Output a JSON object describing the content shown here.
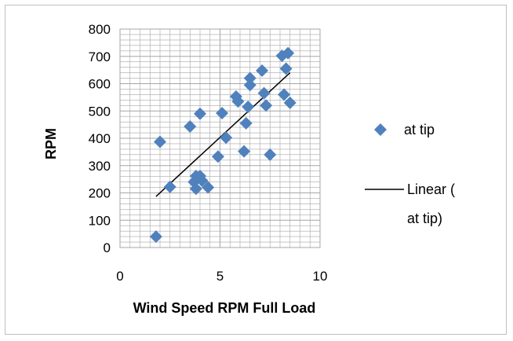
{
  "chart_data": {
    "type": "scatter",
    "xlabel": "Wind Speed RPM Full Load",
    "ylabel": "RPM",
    "xlim": [
      0,
      10
    ],
    "ylim": [
      0,
      800
    ],
    "x_ticks": [
      0,
      5,
      10
    ],
    "y_ticks": [
      0,
      100,
      200,
      300,
      400,
      500,
      600,
      700,
      800
    ],
    "x_tick_labels": [
      "0",
      "5",
      "10"
    ],
    "y_tick_labels": [
      "0",
      "100",
      "200",
      "300",
      "400",
      "500",
      "600",
      "700",
      "800"
    ],
    "grid": true,
    "legend_position": "right",
    "colors": {
      "marker": "#4f81bd",
      "trendline": "#000000",
      "grid": "#a6a6a6"
    },
    "series": [
      {
        "name": "at tip",
        "marker": "diamond",
        "points": [
          [
            1.8,
            40
          ],
          [
            2.0,
            387
          ],
          [
            2.5,
            222
          ],
          [
            3.5,
            443
          ],
          [
            3.7,
            240
          ],
          [
            3.8,
            262
          ],
          [
            3.8,
            215
          ],
          [
            4.0,
            490
          ],
          [
            4.0,
            262
          ],
          [
            4.1,
            245
          ],
          [
            4.4,
            220
          ],
          [
            4.9,
            333
          ],
          [
            5.1,
            492
          ],
          [
            5.3,
            402
          ],
          [
            5.8,
            553
          ],
          [
            5.9,
            535
          ],
          [
            6.2,
            352
          ],
          [
            6.3,
            455
          ],
          [
            6.4,
            515
          ],
          [
            6.5,
            620
          ],
          [
            6.5,
            595
          ],
          [
            7.1,
            648
          ],
          [
            7.2,
            565
          ],
          [
            7.3,
            520
          ],
          [
            7.5,
            340
          ],
          [
            8.1,
            702
          ],
          [
            8.2,
            560
          ],
          [
            8.3,
            655
          ],
          [
            8.4,
            712
          ],
          [
            8.5,
            530
          ]
        ]
      }
    ],
    "trendline": {
      "name": "Linear (at tip)",
      "x": [
        1.8,
        8.5
      ],
      "y": [
        187,
        640
      ]
    }
  }
}
